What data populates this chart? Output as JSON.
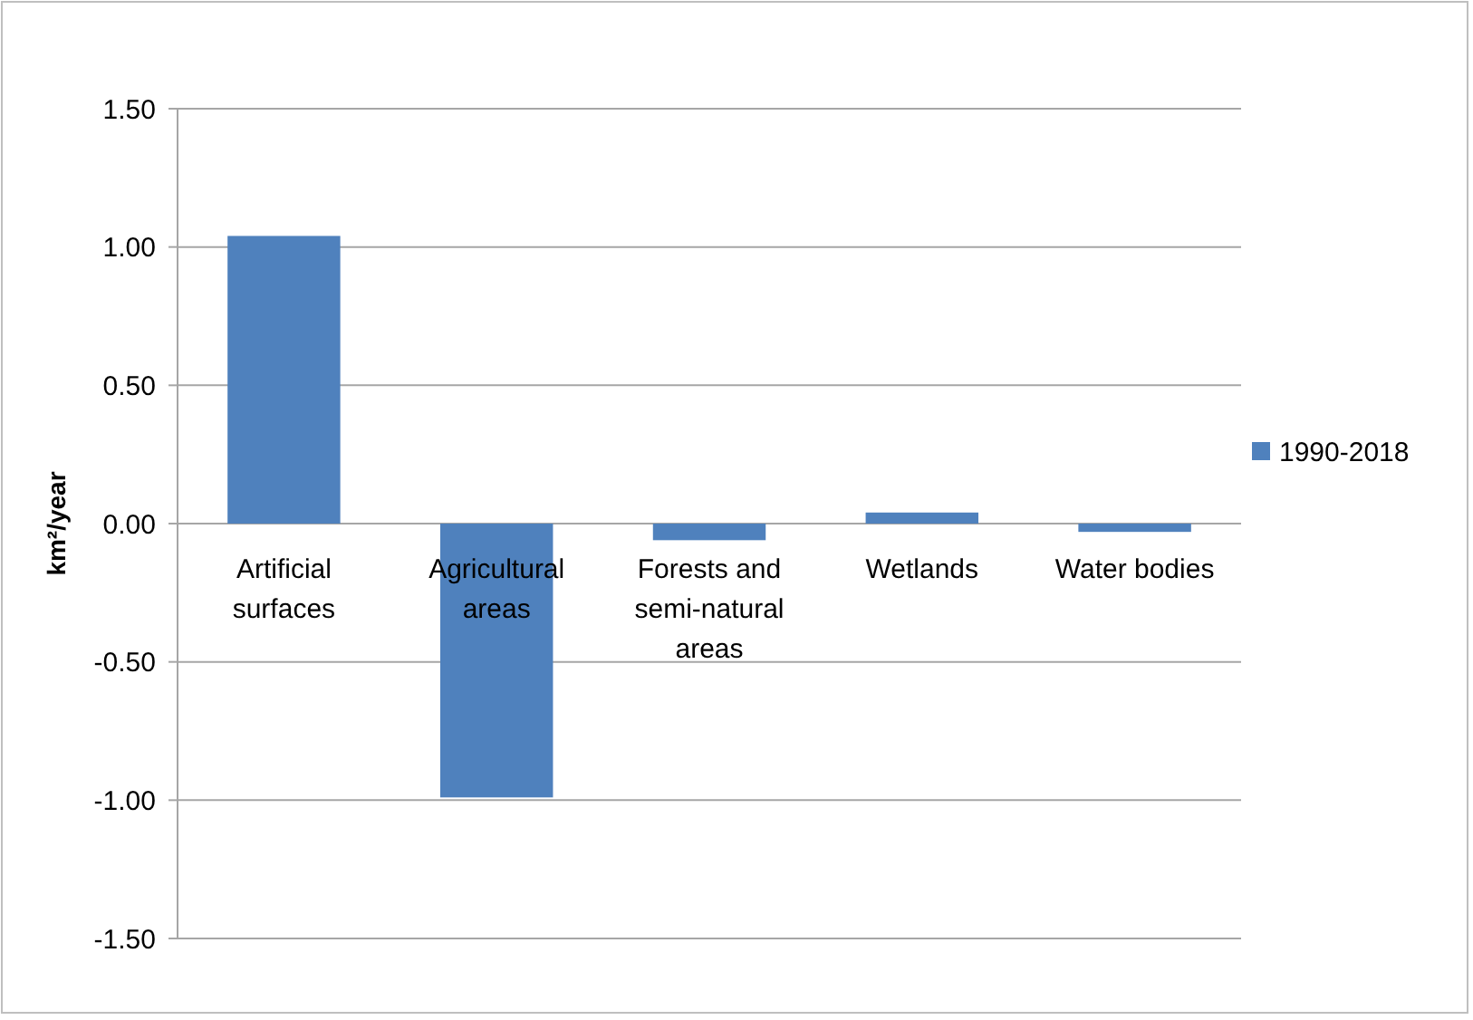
{
  "chart_data": {
    "type": "bar",
    "ylabel": "km²/year",
    "categories": [
      "Artificial surfaces",
      "Agricultural areas",
      "Forests and semi-natural areas",
      "Wetlands",
      "Water bodies"
    ],
    "series": [
      {
        "name": "1990-2018",
        "color": "#4f81bd",
        "values": [
          1.04,
          -0.99,
          -0.06,
          0.04,
          -0.03
        ]
      }
    ],
    "ylim": [
      -1.5,
      1.5
    ],
    "yticks": [
      {
        "value": -1.5,
        "label": "-1.50"
      },
      {
        "value": -1,
        "label": "-1.00"
      },
      {
        "value": -0.5,
        "label": "-0.50"
      },
      {
        "value": 0,
        "label": "0.00"
      },
      {
        "value": 0.5,
        "label": "0.50"
      },
      {
        "value": 1,
        "label": "1.00"
      },
      {
        "value": 1.5,
        "label": "1.50"
      }
    ],
    "grid": "y",
    "legend": "right"
  }
}
